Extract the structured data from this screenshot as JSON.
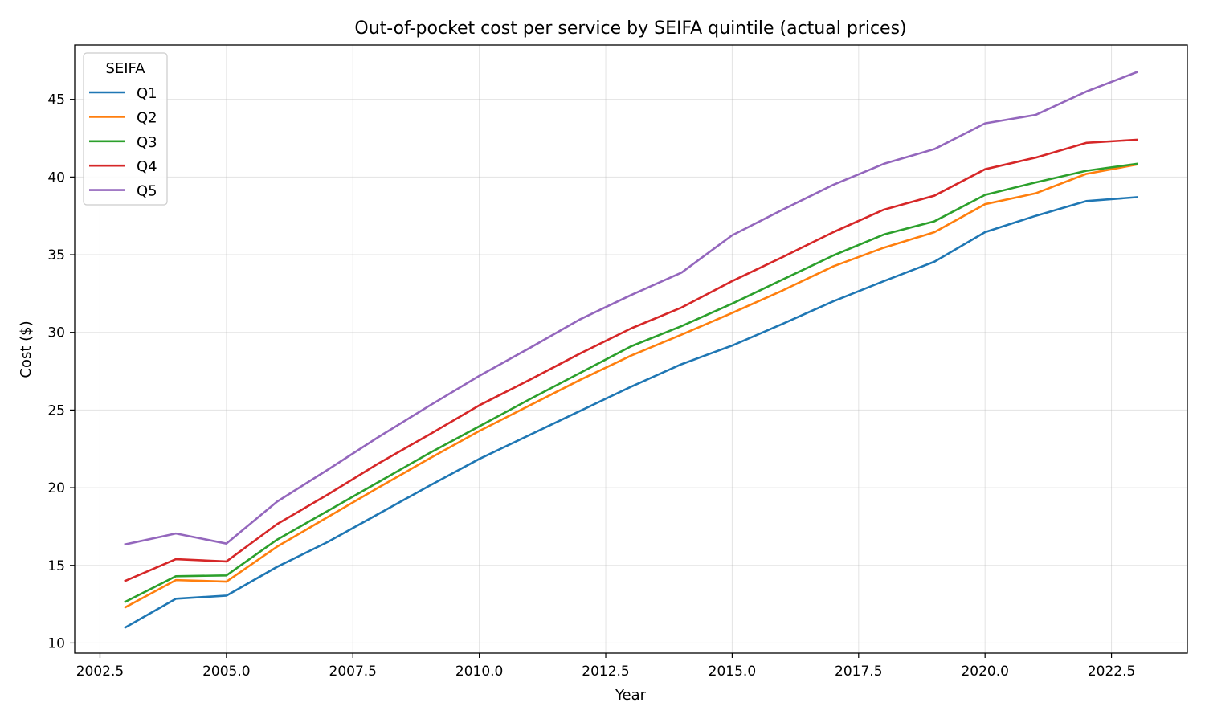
{
  "chart_data": {
    "type": "line",
    "title": "Out-of-pocket cost per service by SEIFA quintile (actual prices)",
    "xlabel": "Year",
    "ylabel": "Cost ($)",
    "xlim": [
      2002.0,
      2024.0
    ],
    "ylim": [
      9.35,
      48.5
    ],
    "xticks": [
      2002.5,
      2005.0,
      2007.5,
      2010.0,
      2012.5,
      2015.0,
      2017.5,
      2020.0,
      2022.5
    ],
    "xtick_labels": [
      "2002.5",
      "2005.0",
      "2007.5",
      "2010.0",
      "2012.5",
      "2015.0",
      "2017.5",
      "2020.0",
      "2022.5"
    ],
    "yticks": [
      10,
      15,
      20,
      25,
      30,
      35,
      40,
      45
    ],
    "ytick_labels": [
      "10",
      "15",
      "20",
      "25",
      "30",
      "35",
      "40",
      "45"
    ],
    "grid": true,
    "legend": {
      "title": "SEIFA",
      "placement": "top-left"
    },
    "x": [
      2003,
      2004,
      2005,
      2006,
      2007,
      2008,
      2009,
      2010,
      2011,
      2012,
      2013,
      2014,
      2015,
      2016,
      2017,
      2018,
      2019,
      2020,
      2021,
      2022,
      2023
    ],
    "series": [
      {
        "name": "Q1",
        "color": "#1f77b4",
        "values": [
          11.0,
          12.85,
          13.05,
          14.9,
          16.5,
          18.3,
          20.1,
          21.85,
          23.4,
          24.95,
          26.5,
          27.95,
          29.15,
          30.55,
          32.0,
          33.3,
          34.55,
          36.45,
          37.5,
          38.45,
          38.7
        ]
      },
      {
        "name": "Q2",
        "color": "#ff7f0e",
        "values": [
          12.3,
          14.05,
          13.95,
          16.2,
          18.1,
          20.0,
          21.85,
          23.65,
          25.3,
          26.95,
          28.5,
          29.85,
          31.25,
          32.7,
          34.25,
          35.45,
          36.45,
          38.25,
          38.95,
          40.2,
          40.8
        ]
      },
      {
        "name": "Q3",
        "color": "#2ca02c",
        "values": [
          12.65,
          14.3,
          14.35,
          16.65,
          18.5,
          20.35,
          22.2,
          23.95,
          25.7,
          27.4,
          29.1,
          30.4,
          31.85,
          33.4,
          34.95,
          36.3,
          37.15,
          38.85,
          39.65,
          40.4,
          40.85
        ]
      },
      {
        "name": "Q4",
        "color": "#d62728",
        "values": [
          14.0,
          15.4,
          15.25,
          17.65,
          19.55,
          21.55,
          23.4,
          25.3,
          26.95,
          28.65,
          30.25,
          31.6,
          33.3,
          34.85,
          36.45,
          37.9,
          38.8,
          40.5,
          41.25,
          42.2,
          42.4
        ]
      },
      {
        "name": "Q5",
        "color": "#9467bd",
        "values": [
          16.35,
          17.05,
          16.4,
          19.1,
          21.15,
          23.25,
          25.25,
          27.2,
          29.0,
          30.85,
          32.4,
          33.85,
          36.25,
          37.9,
          39.5,
          40.85,
          41.8,
          43.45,
          44.0,
          45.5,
          46.75
        ]
      }
    ]
  }
}
